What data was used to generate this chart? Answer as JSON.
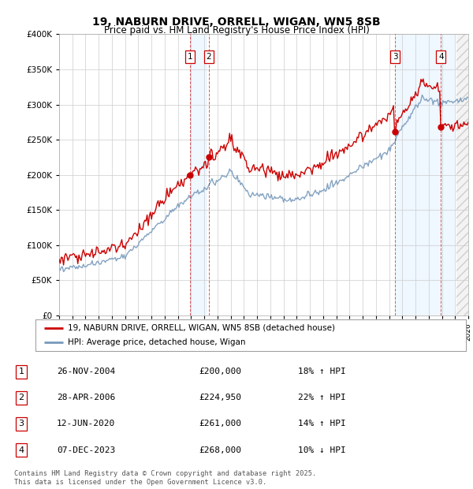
{
  "title1": "19, NABURN DRIVE, ORRELL, WIGAN, WN5 8SB",
  "title2": "Price paid vs. HM Land Registry's House Price Index (HPI)",
  "legend_red": "19, NABURN DRIVE, ORRELL, WIGAN, WN5 8SB (detached house)",
  "legend_blue": "HPI: Average price, detached house, Wigan",
  "footer": "Contains HM Land Registry data © Crown copyright and database right 2025.\nThis data is licensed under the Open Government Licence v3.0.",
  "transactions": [
    {
      "num": 1,
      "date": "26-NOV-2004",
      "price": "£200,000",
      "hpi": "18% ↑ HPI",
      "year": 2004.9
    },
    {
      "num": 2,
      "date": "28-APR-2006",
      "price": "£224,950",
      "hpi": "22% ↑ HPI",
      "year": 2006.33
    },
    {
      "num": 3,
      "date": "12-JUN-2020",
      "price": "£261,000",
      "hpi": "14% ↑ HPI",
      "year": 2020.45
    },
    {
      "num": 4,
      "date": "07-DEC-2023",
      "price": "£268,000",
      "hpi": "10% ↓ HPI",
      "year": 2023.93
    }
  ],
  "transaction_prices": [
    200000,
    224950,
    261000,
    268000
  ],
  "ylim": [
    0,
    400000
  ],
  "xlim_start": 1995.0,
  "xlim_end": 2026.0,
  "background_color": "#ffffff",
  "grid_color": "#cccccc",
  "red_color": "#cc0000",
  "blue_color": "#7799bb",
  "shade_color": "#ddeeff",
  "hatch_color": "#cccccc"
}
